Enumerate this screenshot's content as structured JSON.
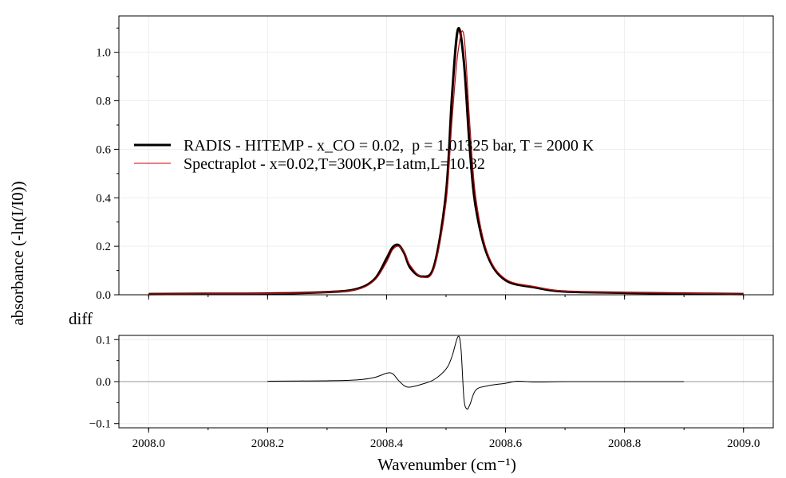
{
  "chart_data": [
    {
      "type": "line",
      "panel": "top",
      "xlabel": "",
      "ylabel": "absorbance (-ln(I/I0))",
      "xlim": [
        2007.95,
        2009.05
      ],
      "ylim": [
        0.0,
        1.15
      ],
      "yticks": [
        0.0,
        0.2,
        0.4,
        0.6,
        0.8,
        1.0
      ],
      "ytick_labels": [
        "0.0",
        "0.2",
        "0.4",
        "0.6",
        "0.8",
        "1.0"
      ],
      "grid": true,
      "legend_position": "center-left",
      "series": [
        {
          "name": "RADIS - HITEMP - x_CO = 0.02,  p = 1.01325 bar, T = 2000 K",
          "color": "#000000",
          "x": [
            2008.0,
            2008.1,
            2008.2,
            2008.3,
            2008.35,
            2008.38,
            2008.4,
            2008.41,
            2008.42,
            2008.43,
            2008.44,
            2008.46,
            2008.48,
            2008.5,
            2008.51,
            2008.52,
            2008.53,
            2008.54,
            2008.55,
            2008.57,
            2008.6,
            2008.65,
            2008.7,
            2008.8,
            2008.9,
            2009.0
          ],
          "y": [
            0.003,
            0.004,
            0.005,
            0.011,
            0.024,
            0.065,
            0.15,
            0.195,
            0.205,
            0.17,
            0.11,
            0.075,
            0.12,
            0.42,
            0.82,
            1.095,
            0.96,
            0.6,
            0.36,
            0.16,
            0.06,
            0.03,
            0.013,
            0.008,
            0.005,
            0.003
          ]
        },
        {
          "name": "Spectraplot - x=0.02,T=300K,P=1atm,L=10.32",
          "color": "#cc0000",
          "x": [
            2008.0,
            2008.1,
            2008.2,
            2008.3,
            2008.35,
            2008.38,
            2008.4,
            2008.41,
            2008.42,
            2008.43,
            2008.44,
            2008.46,
            2008.48,
            2008.5,
            2008.51,
            2008.52,
            2008.53,
            2008.54,
            2008.55,
            2008.57,
            2008.6,
            2008.65,
            2008.7,
            2008.8,
            2008.9,
            2009.0
          ],
          "y": [
            0.003,
            0.004,
            0.005,
            0.011,
            0.022,
            0.06,
            0.135,
            0.185,
            0.2,
            0.175,
            0.12,
            0.073,
            0.11,
            0.38,
            0.72,
            1.0,
            1.07,
            0.7,
            0.4,
            0.17,
            0.065,
            0.033,
            0.015,
            0.009,
            0.006,
            0.003
          ]
        }
      ]
    },
    {
      "type": "line",
      "panel": "bottom",
      "title": "diff",
      "xlabel": "Wavenumber (cm⁻¹)",
      "xlim": [
        2007.95,
        2009.05
      ],
      "ylim": [
        -0.11,
        0.11
      ],
      "xticks": [
        2008.0,
        2008.2,
        2008.4,
        2008.6,
        2008.8,
        2009.0
      ],
      "xtick_labels": [
        "2008.0",
        "2008.2",
        "2008.4",
        "2008.6",
        "2008.8",
        "2009.0"
      ],
      "yticks": [
        -0.1,
        0.0,
        0.1
      ],
      "ytick_labels": [
        "−0.1",
        "0.0",
        "0.1"
      ],
      "grid": true,
      "zero_line": true,
      "series": [
        {
          "name": "diff",
          "color": "#000000",
          "x": [
            2008.2,
            2008.3,
            2008.35,
            2008.38,
            2008.4,
            2008.41,
            2008.42,
            2008.43,
            2008.44,
            2008.46,
            2008.48,
            2008.5,
            2008.51,
            2008.52,
            2008.525,
            2008.53,
            2008.535,
            2008.54,
            2008.55,
            2008.57,
            2008.6,
            2008.62,
            2008.65,
            2008.7,
            2008.8,
            2008.9
          ],
          "y": [
            0.001,
            0.002,
            0.004,
            0.01,
            0.02,
            0.019,
            0.003,
            -0.01,
            -0.013,
            -0.006,
            0.005,
            0.03,
            0.06,
            0.107,
            0.08,
            -0.04,
            -0.065,
            -0.055,
            -0.02,
            -0.01,
            -0.004,
            0.001,
            -0.001,
            0.0,
            0.0,
            0.0
          ]
        }
      ]
    }
  ]
}
